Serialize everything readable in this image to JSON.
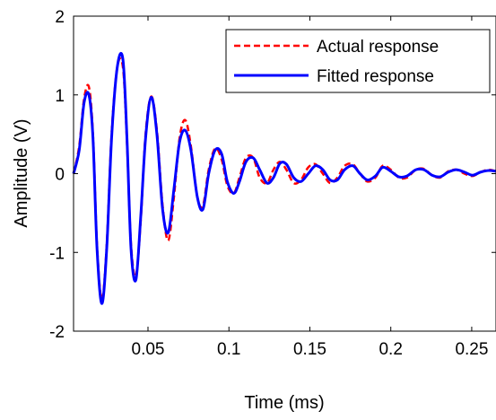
{
  "chart_data": {
    "type": "line",
    "title": "",
    "xlabel": "Time (ms)",
    "ylabel": "Amplitude (V)",
    "xlim": [
      0.004,
      0.265
    ],
    "ylim": [
      -2,
      2
    ],
    "xticks": [
      0.05,
      0.1,
      0.15,
      0.2,
      0.25
    ],
    "xtick_labels": [
      "0.05",
      "0.1",
      "0.15",
      "0.2",
      "0.25"
    ],
    "yticks": [
      -2,
      -1,
      0,
      1,
      2
    ],
    "ytick_labels": [
      "-2",
      "-1",
      "0",
      "1",
      "2"
    ],
    "grid": false,
    "legend_position": "top-right",
    "series": [
      {
        "name": "Actual response",
        "color": "#ff0000",
        "style": "dashed",
        "x": [
          0.004,
          0.0075,
          0.0105,
          0.0135,
          0.016,
          0.0185,
          0.0215,
          0.0245,
          0.0275,
          0.031,
          0.0345,
          0.037,
          0.0395,
          0.0425,
          0.0455,
          0.0485,
          0.052,
          0.0555,
          0.059,
          0.0625,
          0.066,
          0.0695,
          0.073,
          0.0765,
          0.0805,
          0.084,
          0.0875,
          0.0915,
          0.0955,
          0.099,
          0.103,
          0.1065,
          0.1105,
          0.115,
          0.119,
          0.1235,
          0.1275,
          0.1315,
          0.1355,
          0.14,
          0.1445,
          0.149,
          0.1535,
          0.158,
          0.1625,
          0.167,
          0.1715,
          0.1765,
          0.181,
          0.1855,
          0.1905,
          0.195,
          0.2,
          0.205,
          0.21,
          0.2155,
          0.2205,
          0.2255,
          0.2305,
          0.2355,
          0.2405,
          0.2455,
          0.2505,
          0.2555,
          0.2605,
          0.265
        ],
        "y": [
          0.0,
          0.35,
          0.95,
          1.1,
          0.5,
          -0.9,
          -1.6,
          -0.9,
          0.5,
          1.35,
          1.35,
          0.4,
          -0.9,
          -1.3,
          -0.6,
          0.5,
          0.98,
          0.55,
          -0.4,
          -0.85,
          -0.3,
          0.45,
          0.68,
          0.35,
          -0.3,
          -0.4,
          0.05,
          0.32,
          0.18,
          -0.15,
          -0.25,
          -0.05,
          0.2,
          0.2,
          -0.05,
          -0.12,
          0.05,
          0.15,
          0.05,
          -0.12,
          -0.08,
          0.08,
          0.12,
          0.0,
          -0.12,
          -0.05,
          0.1,
          0.12,
          0.0,
          -0.1,
          -0.05,
          0.1,
          0.05,
          -0.05,
          -0.05,
          0.05,
          0.06,
          -0.02,
          -0.05,
          0.03,
          0.05,
          0.0,
          -0.03,
          0.02,
          0.05,
          0.03
        ]
      },
      {
        "name": "Fitted response",
        "color": "#0000ff",
        "style": "solid",
        "x": [
          0.004,
          0.0075,
          0.0105,
          0.0135,
          0.016,
          0.0185,
          0.0215,
          0.0245,
          0.0275,
          0.031,
          0.0345,
          0.037,
          0.0395,
          0.0425,
          0.0455,
          0.0485,
          0.052,
          0.0555,
          0.059,
          0.0625,
          0.066,
          0.0695,
          0.073,
          0.0765,
          0.0805,
          0.084,
          0.0875,
          0.0915,
          0.0955,
          0.099,
          0.103,
          0.1065,
          0.1105,
          0.115,
          0.119,
          0.1235,
          0.1275,
          0.1315,
          0.1355,
          0.14,
          0.1445,
          0.149,
          0.1535,
          0.158,
          0.1625,
          0.167,
          0.1715,
          0.1765,
          0.181,
          0.1855,
          0.1905,
          0.195,
          0.2,
          0.205,
          0.21,
          0.2155,
          0.2205,
          0.2255,
          0.2305,
          0.2355,
          0.2405,
          0.2455,
          0.2505,
          0.2555,
          0.2605,
          0.265
        ],
        "y": [
          0.0,
          0.3,
          0.9,
          1.0,
          0.45,
          -0.95,
          -1.65,
          -0.95,
          0.45,
          1.35,
          1.45,
          0.45,
          -0.95,
          -1.35,
          -0.55,
          0.45,
          0.97,
          0.5,
          -0.45,
          -0.75,
          -0.2,
          0.4,
          0.55,
          0.3,
          -0.3,
          -0.45,
          0.0,
          0.3,
          0.25,
          -0.1,
          -0.25,
          -0.1,
          0.15,
          0.2,
          0.05,
          -0.12,
          -0.05,
          0.13,
          0.12,
          -0.05,
          -0.1,
          0.0,
          0.1,
          0.05,
          -0.08,
          -0.08,
          0.05,
          0.1,
          0.0,
          -0.08,
          -0.03,
          0.08,
          0.03,
          -0.04,
          -0.03,
          0.05,
          0.05,
          -0.02,
          -0.04,
          0.02,
          0.05,
          0.02,
          -0.02,
          0.02,
          0.04,
          0.03
        ]
      }
    ]
  }
}
